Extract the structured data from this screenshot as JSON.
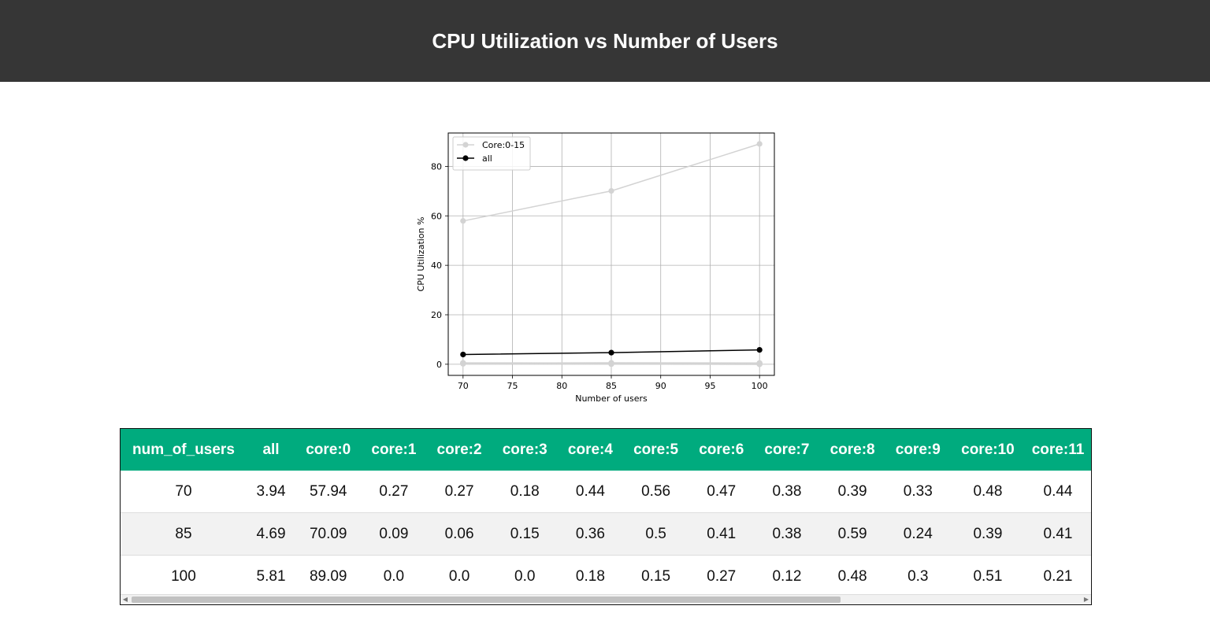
{
  "header": {
    "title": "CPU Utilization vs Number of Users"
  },
  "chart_data": {
    "type": "line",
    "x": [
      70,
      85,
      100
    ],
    "xlabel": "Number of users",
    "ylabel": "CPU Utilization %",
    "xlim": [
      68.5,
      101.5
    ],
    "ylim": [
      -4.5,
      93.5
    ],
    "xticks": [
      70,
      75,
      80,
      85,
      90,
      95,
      100
    ],
    "yticks": [
      0,
      20,
      40,
      60,
      80
    ],
    "grid": true,
    "legend_position": "top-left",
    "series": [
      {
        "name": "Core:0-15",
        "color": "#d3d3d3",
        "values": [
          57.94,
          70.09,
          89.09
        ]
      },
      {
        "name": "",
        "color": "#d3d3d3",
        "values": [
          0.27,
          0.09,
          0.0
        ]
      },
      {
        "name": "",
        "color": "#d3d3d3",
        "values": [
          0.27,
          0.06,
          0.0
        ]
      },
      {
        "name": "",
        "color": "#d3d3d3",
        "values": [
          0.18,
          0.15,
          0.0
        ]
      },
      {
        "name": "",
        "color": "#d3d3d3",
        "values": [
          0.44,
          0.36,
          0.18
        ]
      },
      {
        "name": "",
        "color": "#d3d3d3",
        "values": [
          0.56,
          0.5,
          0.15
        ]
      },
      {
        "name": "",
        "color": "#d3d3d3",
        "values": [
          0.47,
          0.41,
          0.27
        ]
      },
      {
        "name": "",
        "color": "#d3d3d3",
        "values": [
          0.38,
          0.38,
          0.12
        ]
      },
      {
        "name": "",
        "color": "#d3d3d3",
        "values": [
          0.39,
          0.59,
          0.48
        ]
      },
      {
        "name": "",
        "color": "#d3d3d3",
        "values": [
          0.33,
          0.24,
          0.3
        ]
      },
      {
        "name": "",
        "color": "#d3d3d3",
        "values": [
          0.48,
          0.39,
          0.51
        ]
      },
      {
        "name": "all",
        "color": "#000000",
        "values": [
          3.94,
          4.69,
          5.81
        ]
      }
    ]
  },
  "table": {
    "columns": [
      "num_of_users",
      "all",
      "core:0",
      "core:1",
      "core:2",
      "core:3",
      "core:4",
      "core:5",
      "core:6",
      "core:7",
      "core:8",
      "core:9",
      "core:10",
      "core:11"
    ],
    "rows": [
      [
        "70",
        "3.94",
        "57.94",
        "0.27",
        "0.27",
        "0.18",
        "0.44",
        "0.56",
        "0.47",
        "0.38",
        "0.39",
        "0.33",
        "0.48",
        "0.44"
      ],
      [
        "85",
        "4.69",
        "70.09",
        "0.09",
        "0.06",
        "0.15",
        "0.36",
        "0.5",
        "0.41",
        "0.38",
        "0.59",
        "0.24",
        "0.39",
        "0.41"
      ],
      [
        "100",
        "5.81",
        "89.09",
        "0.0",
        "0.0",
        "0.0",
        "0.18",
        "0.15",
        "0.27",
        "0.12",
        "0.48",
        "0.3",
        "0.51",
        "0.21"
      ]
    ]
  },
  "colors": {
    "header_bg": "#363636",
    "table_header_bg": "#00ab7e",
    "row_alt": "#f2f2f2"
  }
}
